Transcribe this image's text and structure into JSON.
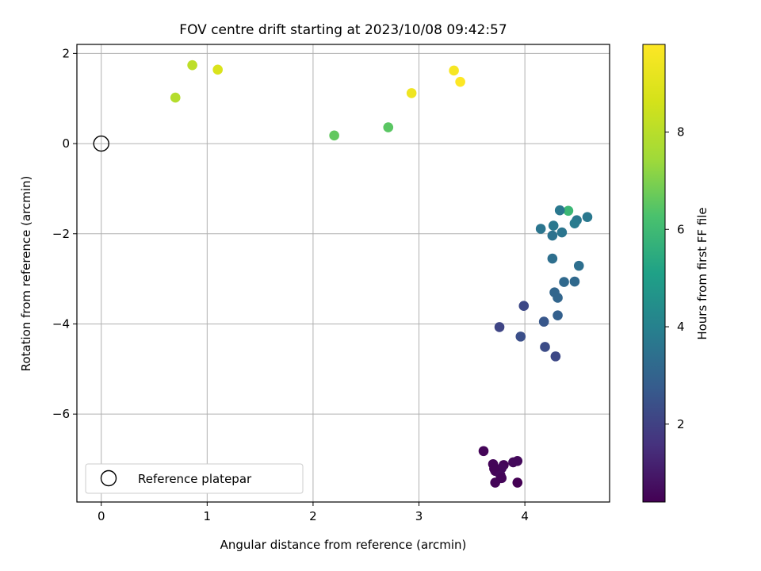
{
  "chart_data": {
    "type": "scatter",
    "title": "FOV centre drift starting at 2023/10/08 09:42:57",
    "xlabel": "Angular distance from reference (arcmin)",
    "ylabel": "Rotation from reference (arcmin)",
    "xlim": [
      -0.23,
      4.8
    ],
    "ylim": [
      -7.95,
      2.2
    ],
    "xticks": [
      0,
      1,
      2,
      3,
      4
    ],
    "yticks": [
      2,
      0,
      -2,
      -4,
      -6
    ],
    "ytick_labels": [
      "2",
      "0",
      "−2",
      "−4",
      "−6"
    ],
    "grid": true,
    "legend": {
      "placement": "lower-left",
      "label": "Reference platepar"
    },
    "reference_point": {
      "x": 0,
      "y": 0
    },
    "colorbar": {
      "label": "Hours from first FF file",
      "range": [
        0.4,
        9.8
      ],
      "ticks": [
        2,
        4,
        6,
        8
      ],
      "colormap": "viridis"
    },
    "series": [
      {
        "points": [
          {
            "x": 0.7,
            "y": 1.02,
            "c": 7.9
          },
          {
            "x": 0.86,
            "y": 1.74,
            "c": 8.1
          },
          {
            "x": 1.1,
            "y": 1.64,
            "c": 8.8
          },
          {
            "x": 2.2,
            "y": 0.18,
            "c": 6.6
          },
          {
            "x": 2.71,
            "y": 0.36,
            "c": 6.5
          },
          {
            "x": 2.93,
            "y": 1.12,
            "c": 9.4
          },
          {
            "x": 3.33,
            "y": 1.62,
            "c": 9.6
          },
          {
            "x": 3.39,
            "y": 1.37,
            "c": 9.8
          },
          {
            "x": 4.41,
            "y": -1.49,
            "c": 5.9
          },
          {
            "x": 4.33,
            "y": -1.48,
            "c": 3.7
          },
          {
            "x": 4.59,
            "y": -1.63,
            "c": 3.7
          },
          {
            "x": 4.49,
            "y": -1.7,
            "c": 3.7
          },
          {
            "x": 4.47,
            "y": -1.77,
            "c": 3.8
          },
          {
            "x": 4.27,
            "y": -1.82,
            "c": 3.7
          },
          {
            "x": 4.15,
            "y": -1.89,
            "c": 3.6
          },
          {
            "x": 4.35,
            "y": -1.97,
            "c": 3.6
          },
          {
            "x": 4.26,
            "y": -2.04,
            "c": 3.5
          },
          {
            "x": 4.26,
            "y": -2.55,
            "c": 3.4
          },
          {
            "x": 4.51,
            "y": -2.71,
            "c": 3.4
          },
          {
            "x": 4.37,
            "y": -3.07,
            "c": 3.2
          },
          {
            "x": 4.47,
            "y": -3.06,
            "c": 3.2
          },
          {
            "x": 4.28,
            "y": -3.3,
            "c": 3.1
          },
          {
            "x": 4.31,
            "y": -3.42,
            "c": 3.1
          },
          {
            "x": 3.99,
            "y": -3.6,
            "c": 2.2
          },
          {
            "x": 4.31,
            "y": -3.81,
            "c": 2.9
          },
          {
            "x": 4.18,
            "y": -3.95,
            "c": 2.6
          },
          {
            "x": 3.76,
            "y": -4.07,
            "c": 2.1
          },
          {
            "x": 3.96,
            "y": -4.28,
            "c": 2.4
          },
          {
            "x": 4.19,
            "y": -4.51,
            "c": 2.3
          },
          {
            "x": 4.29,
            "y": -4.72,
            "c": 2.2
          },
          {
            "x": 3.61,
            "y": -6.82,
            "c": 0.5
          },
          {
            "x": 3.93,
            "y": -7.04,
            "c": 0.6
          },
          {
            "x": 3.89,
            "y": -7.07,
            "c": 0.6
          },
          {
            "x": 3.7,
            "y": -7.11,
            "c": 0.5
          },
          {
            "x": 3.8,
            "y": -7.13,
            "c": 0.5
          },
          {
            "x": 3.78,
            "y": -7.2,
            "c": 0.6
          },
          {
            "x": 3.71,
            "y": -7.21,
            "c": 0.5
          },
          {
            "x": 3.72,
            "y": -7.26,
            "c": 0.5
          },
          {
            "x": 3.77,
            "y": -7.36,
            "c": 0.6
          },
          {
            "x": 3.78,
            "y": -7.42,
            "c": 0.5
          },
          {
            "x": 3.72,
            "y": -7.52,
            "c": 0.5
          },
          {
            "x": 3.93,
            "y": -7.52,
            "c": 0.4
          }
        ]
      }
    ]
  }
}
